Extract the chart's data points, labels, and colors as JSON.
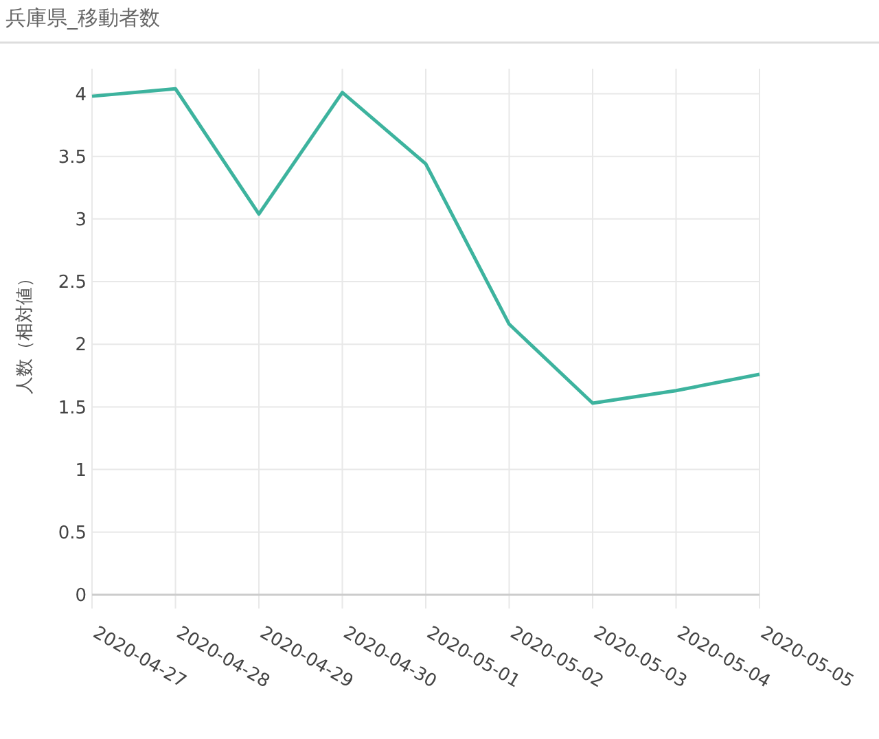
{
  "chart_data": {
    "type": "line",
    "title": "兵庫県_移動者数",
    "ylabel": "人数（相対値）",
    "categories": [
      "2020-04-27",
      "2020-04-28",
      "2020-04-29",
      "2020-04-30",
      "2020-05-01",
      "2020-05-02",
      "2020-05-03",
      "2020-05-04",
      "2020-05-05"
    ],
    "series": [
      {
        "color": "#3db39e",
        "values": [
          3.98,
          4.04,
          3.04,
          4.01,
          3.44,
          2.16,
          1.53,
          1.63,
          1.76
        ]
      }
    ],
    "ylim": [
      0,
      4.2
    ],
    "yticks": [
      0,
      0.5,
      1,
      1.5,
      2,
      2.5,
      3,
      3.5,
      4
    ],
    "grid": true,
    "marker": "none",
    "line_style": "solid"
  }
}
